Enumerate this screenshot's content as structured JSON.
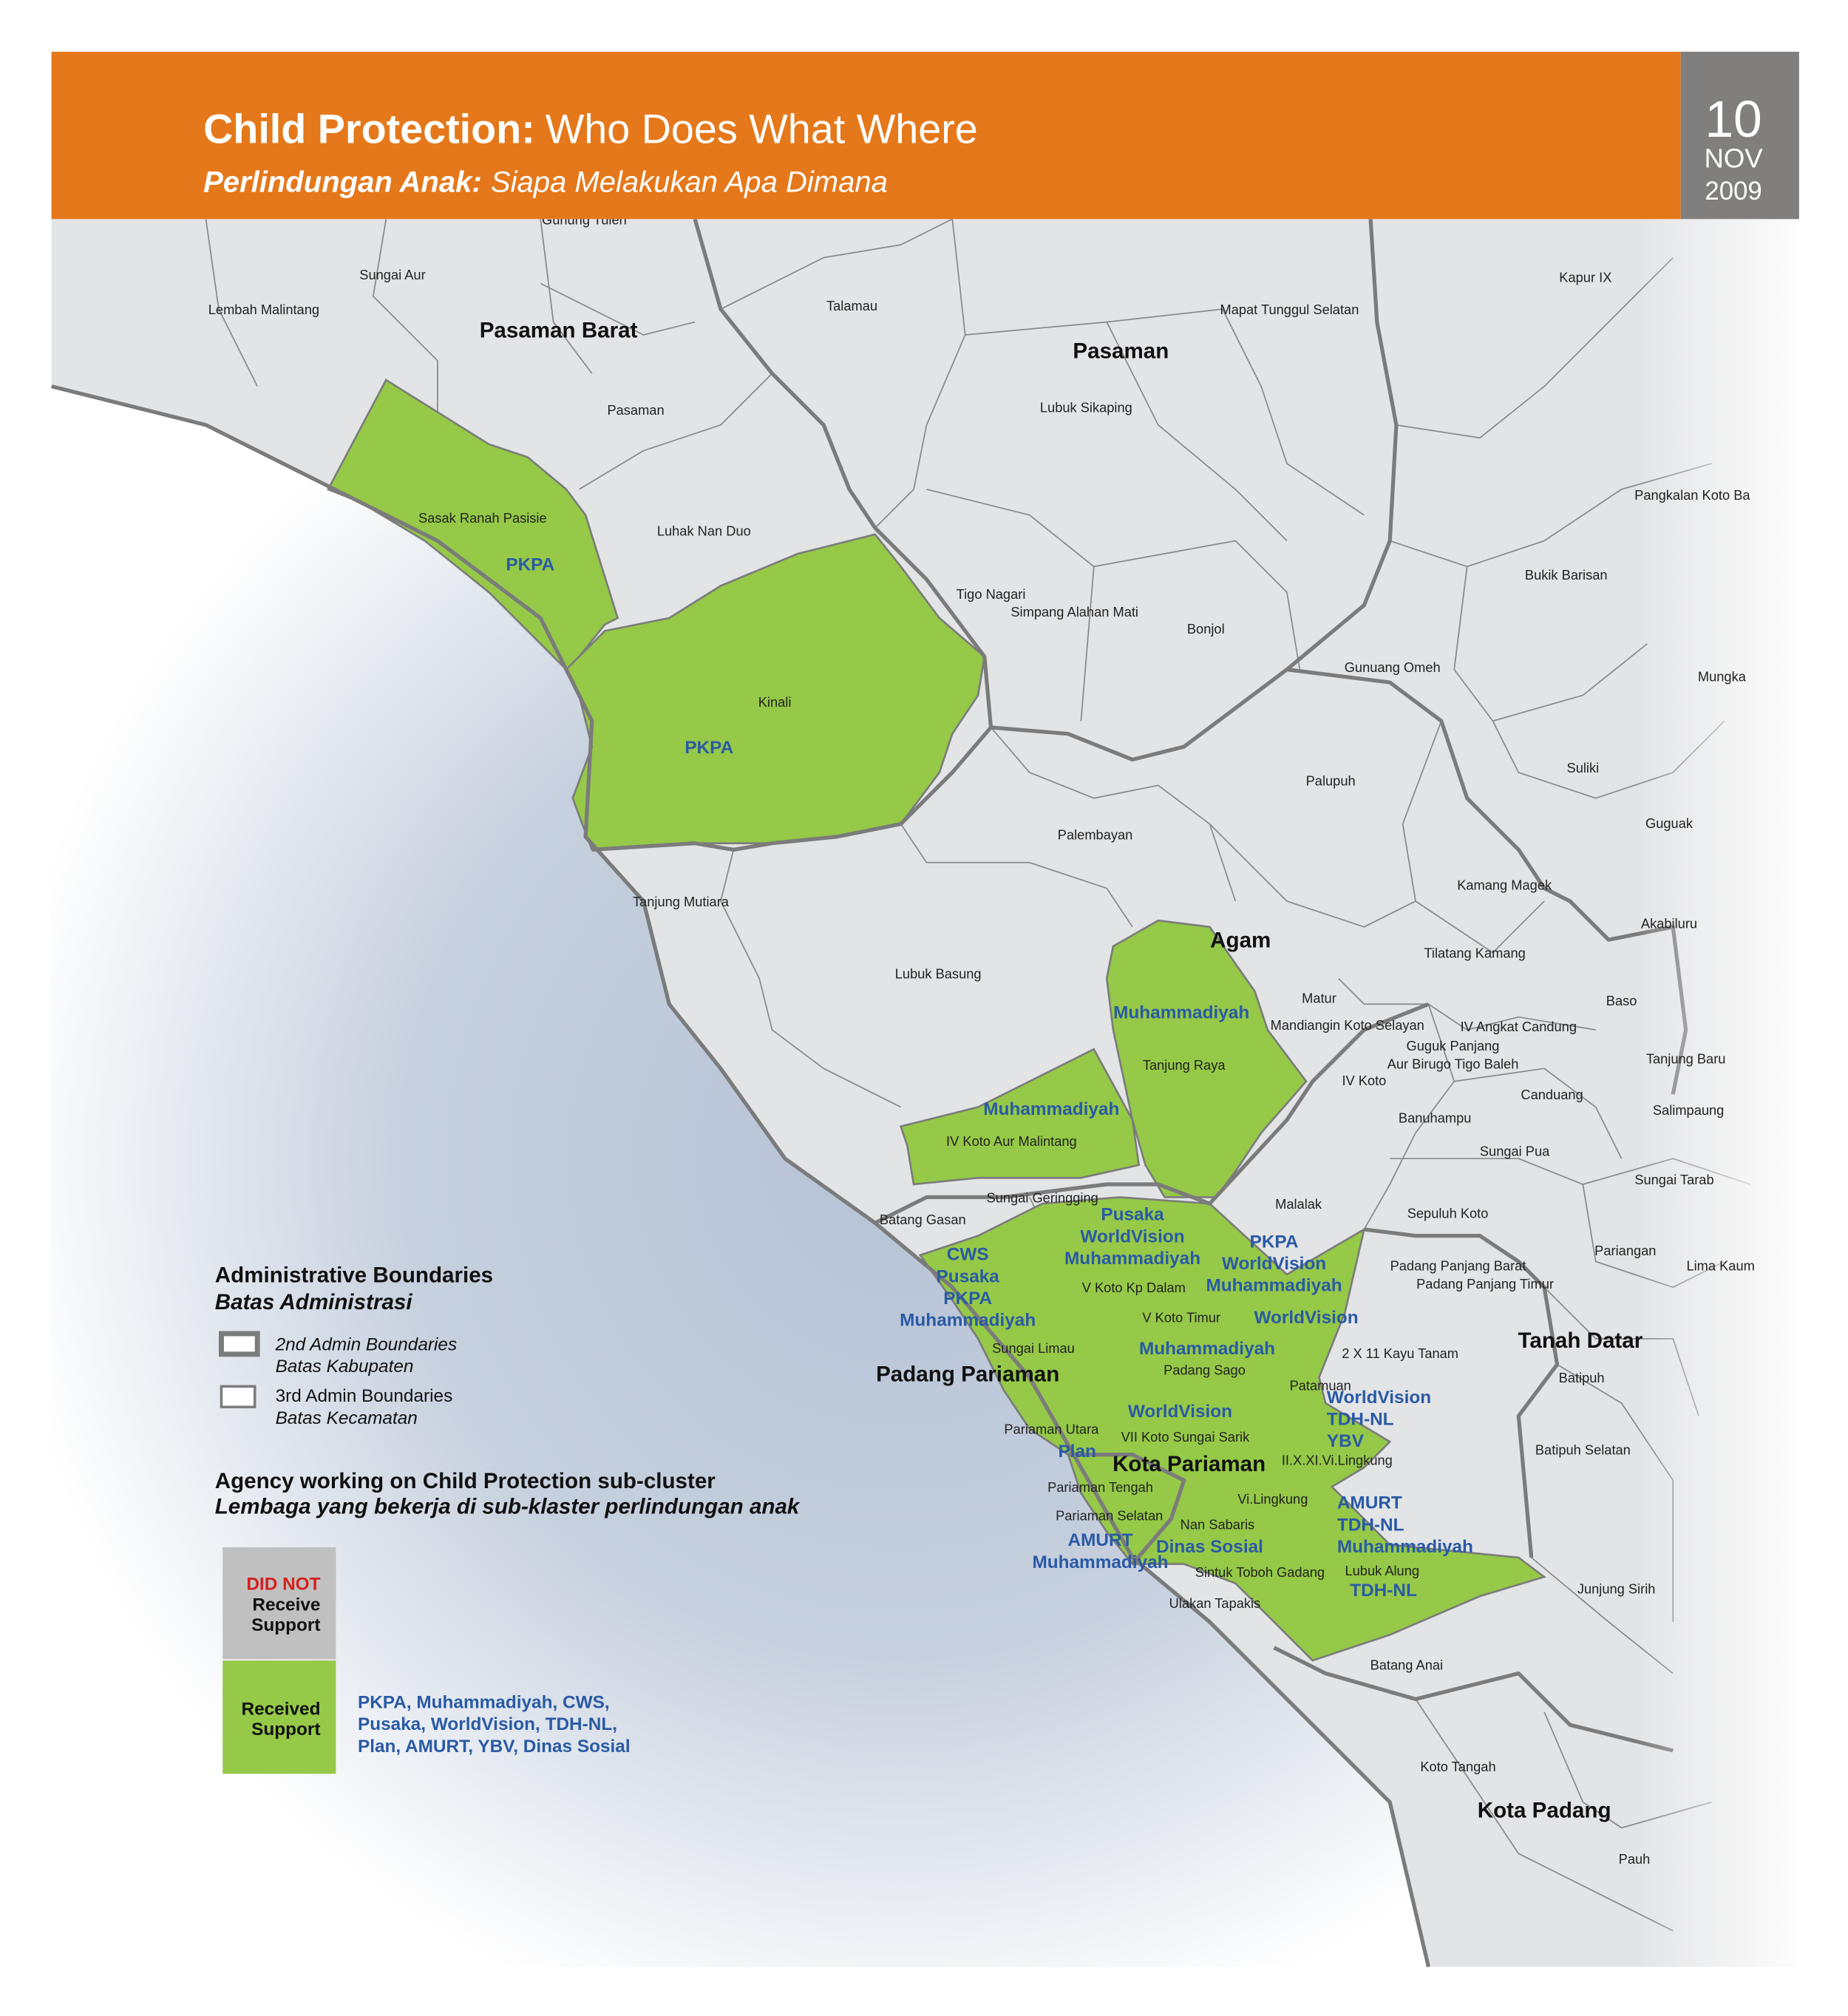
{
  "header": {
    "title_bold": "Child Protection:",
    "title": "Who Does What Where",
    "subtitle_bold": "Perlindungan Anak:",
    "subtitle": "Siapa Melakukan Apa Dimana",
    "date": {
      "day": "10",
      "month": "NOV",
      "year": "2009"
    }
  },
  "districts": [
    "Pasaman Barat",
    "Pasaman",
    "Agam",
    "Padang Pariaman",
    "Kota Pariaman",
    "Tanah Datar",
    "Kota Padang"
  ],
  "subdistricts": [
    "Gunung Tuleh",
    "Sungai Aur",
    "Lembah Malintang",
    "Talamau",
    "Mapat Tunggul Selatan",
    "Kapur IX",
    "Pasaman",
    "Lubuk Sikaping",
    "Sasak Ranah Pasisie",
    "Luhak Nan Duo",
    "Pangkalan Koto Ba",
    "Bukik Barisan",
    "Tigo Nagari",
    "Simpang Alahan Mati",
    "Bonjol",
    "Gunuang Omeh",
    "Mungka",
    "Kinali",
    "Suliki",
    "Palupuh",
    "Guguak",
    "Palembayan",
    "Kamang Magek",
    "Tanjung Mutiara",
    "Akabiluru",
    "Tilatang Kamang",
    "Lubuk Basung",
    "Matur",
    "Baso",
    "Mandiangin Koto Selayan",
    "IV Angkat Candung",
    "Guguk Panjang",
    "Tanjung Raya",
    "Aur Birugo Tigo Baleh",
    "Tanjung Baru",
    "IV Koto",
    "Canduang",
    "Salimpaung",
    "Banuhampu",
    "IV Koto Aur Malintang",
    "Sungai Pua",
    "Sungai Tarab",
    "Sungai Geringging",
    "Malalak",
    "Sepuluh Koto",
    "Batang Gasan",
    "Pariangan",
    "Padang Panjang Barat",
    "Lima Kaum",
    "Padang Panjang Timur",
    "V Koto Kp Dalam",
    "V Koto Timur",
    "Sungai Limau",
    "2 X 11 Kayu Tanam",
    "Padang Sago",
    "Patamuan",
    "Batipuh",
    "Pariaman Utara",
    "VII Koto Sungai Sarik",
    "Batipuh Selatan",
    "II.X.XI.Vi.Lingkung",
    "Pariaman Tengah",
    "Vi.Lingkung",
    "Pariaman Selatan",
    "Nan Sabaris",
    "Sintuk Toboh Gadang",
    "Lubuk Alung",
    "Junjung Sirih",
    "Ulakan Tapakis",
    "Batang Anai",
    "Koto Tangah",
    "Pauh"
  ],
  "agencies": [
    [
      "PKPA"
    ],
    [
      "PKPA"
    ],
    [
      "Muhammadiyah"
    ],
    [
      "Muhammadiyah"
    ],
    [
      "Pusaka",
      "WorldVision",
      "Muhammadiyah"
    ],
    [
      "PKPA",
      "WorldVision",
      "Muhammadiyah"
    ],
    [
      "CWS",
      "Pusaka",
      "PKPA",
      "Muhammadiyah"
    ],
    [
      "WorldVision"
    ],
    [
      "Muhammadiyah"
    ],
    [
      "WorldVision",
      "TDH-NL",
      "YBV"
    ],
    [
      "WorldVision"
    ],
    [
      "Plan"
    ],
    [
      "AMURT",
      "TDH-NL",
      "Muhammadiyah"
    ],
    [
      "AMURT",
      "Muhammadiyah"
    ],
    [
      "Dinas Sosial"
    ],
    [
      "TDH-NL"
    ]
  ],
  "legend": {
    "boundaries_title": "Administrative Boundaries",
    "boundaries_title_local": "Batas Administrasi",
    "items": [
      {
        "label": "2nd Admin Boundaries",
        "label_local": "Batas Kabupaten"
      },
      {
        "label": "3rd Admin Boundaries",
        "label_local": "Batas Kecamatan"
      }
    ],
    "agency_title": "Agency working on Child Protection sub-cluster",
    "agency_title_local": "Lembaga yang bekerja di sub-klaster perlindungan anak",
    "not_supported": {
      "highlight": "DID NOT",
      "label": [
        "Receive",
        "Support"
      ]
    },
    "supported": {
      "label": [
        "Received",
        "Support"
      ],
      "agencies": [
        "PKPA, Muhammadiyah, CWS,",
        "Pusaka, WorldVision, TDH-NL,",
        "Plan, AMURT, YBV, Dinas Sosial"
      ]
    }
  }
}
